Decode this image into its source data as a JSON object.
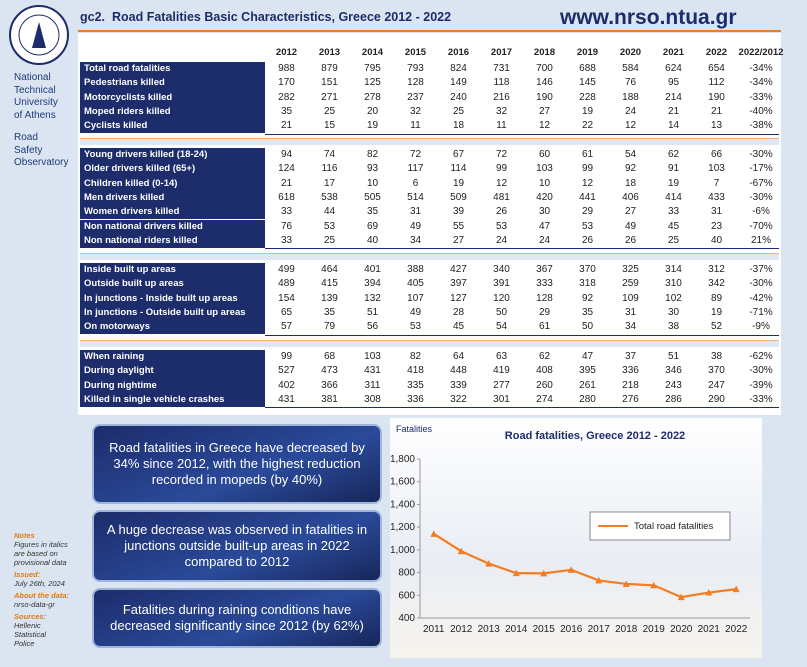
{
  "header": {
    "code": "gc2.",
    "title": "Road Fatalities Basic Characteristics, Greece 2012 - 2022",
    "url": "www.nrso.ntua.gr"
  },
  "sidebar": {
    "institution": [
      "National",
      "Technical",
      "University",
      "of Athens"
    ],
    "unit": [
      "Road",
      "Safety",
      "Observatory"
    ],
    "notes": [
      {
        "head": "Notes",
        "lines": [
          "Figures in italics",
          "are based on",
          "provisional data"
        ]
      },
      {
        "head": "Issued:",
        "lines": [
          "July 26th, 2024"
        ]
      },
      {
        "head": "About the data:",
        "lines": [
          "nrso-data-gr"
        ]
      },
      {
        "head": "Sources:",
        "lines": [
          "Hellenic",
          "Statistical",
          "Police"
        ]
      }
    ]
  },
  "table": {
    "columns": [
      2012,
      2013,
      2014,
      2015,
      2016,
      2017,
      2018,
      2019,
      2020,
      2021,
      2022,
      "2022/2012"
    ],
    "groups": [
      [
        {
          "label": "Total road fatalities",
          "values": [
            988,
            879,
            795,
            793,
            824,
            731,
            700,
            688,
            584,
            624,
            654
          ],
          "change": "-34%"
        },
        {
          "label": "Pedestrians killed",
          "values": [
            170,
            151,
            125,
            128,
            149,
            118,
            146,
            145,
            76,
            95,
            112
          ],
          "change": "-34%"
        },
        {
          "label": "Motorcyclists killed",
          "values": [
            282,
            271,
            278,
            237,
            240,
            216,
            190,
            228,
            188,
            214,
            190
          ],
          "change": "-33%"
        },
        {
          "label": "Moped riders killed",
          "values": [
            35,
            25,
            20,
            32,
            25,
            32,
            27,
            19,
            24,
            21,
            21
          ],
          "change": "-40%"
        },
        {
          "label": "Cyclists killed",
          "values": [
            21,
            15,
            19,
            11,
            18,
            11,
            12,
            22,
            12,
            14,
            13
          ],
          "change": "-38%"
        }
      ],
      [
        {
          "label": "Young drivers killed (18-24)",
          "values": [
            94,
            74,
            82,
            72,
            67,
            72,
            60,
            61,
            54,
            62,
            66
          ],
          "change": "-30%"
        },
        {
          "label": "Older drivers killed (65+)",
          "values": [
            124,
            116,
            93,
            117,
            114,
            99,
            103,
            99,
            92,
            91,
            103
          ],
          "change": "-17%"
        },
        {
          "label": "Children killed (0-14)",
          "values": [
            21,
            17,
            10,
            6,
            19,
            12,
            10,
            12,
            18,
            19,
            7
          ],
          "change": "-67%"
        },
        {
          "label": "Men drivers killed",
          "values": [
            618,
            538,
            505,
            514,
            509,
            481,
            420,
            441,
            406,
            414,
            433
          ],
          "change": "-30%"
        },
        {
          "label": "Women drivers killed",
          "values": [
            33,
            44,
            35,
            31,
            39,
            26,
            30,
            29,
            27,
            33,
            31
          ],
          "change": "-6%"
        },
        {
          "label": "Non national drivers killed",
          "values": [
            76,
            53,
            69,
            49,
            55,
            53,
            47,
            53,
            49,
            45,
            23
          ],
          "change": "-70%"
        },
        {
          "label": "Non national riders killed",
          "values": [
            33,
            25,
            40,
            34,
            27,
            24,
            24,
            26,
            26,
            25,
            40
          ],
          "change": "21%"
        }
      ],
      [
        {
          "label": "Inside built up areas",
          "values": [
            499,
            464,
            401,
            388,
            427,
            340,
            367,
            370,
            325,
            314,
            312
          ],
          "change": "-37%"
        },
        {
          "label": "Outside built up areas",
          "values": [
            489,
            415,
            394,
            405,
            397,
            391,
            333,
            318,
            259,
            310,
            342
          ],
          "change": "-30%"
        },
        {
          "label": "In junctions - Inside built up areas",
          "values": [
            154,
            139,
            132,
            107,
            127,
            120,
            128,
            92,
            109,
            102,
            89
          ],
          "change": "-42%"
        },
        {
          "label": "In junctions - Outside built up areas",
          "values": [
            65,
            35,
            51,
            49,
            28,
            50,
            29,
            35,
            31,
            30,
            19
          ],
          "change": "-71%"
        },
        {
          "label": "On motorways",
          "values": [
            57,
            79,
            56,
            53,
            45,
            54,
            61,
            50,
            34,
            38,
            52
          ],
          "change": "-9%"
        }
      ],
      [
        {
          "label": "When raining",
          "values": [
            99,
            68,
            103,
            82,
            64,
            63,
            62,
            47,
            37,
            51,
            38
          ],
          "change": "-62%"
        },
        {
          "label": "During daylight",
          "values": [
            527,
            473,
            431,
            418,
            448,
            419,
            408,
            395,
            336,
            346,
            370
          ],
          "change": "-30%"
        },
        {
          "label": "During nightime",
          "values": [
            402,
            366,
            311,
            335,
            339,
            277,
            260,
            261,
            218,
            243,
            247
          ],
          "change": "-39%"
        },
        {
          "label": "Killed in single vehicle crashes",
          "values": [
            431,
            381,
            308,
            336,
            322,
            301,
            274,
            280,
            276,
            286,
            290
          ],
          "change": "-33%"
        }
      ]
    ]
  },
  "callouts": [
    "Road fatalities in Greece have decreased by 34% since 2012, with the highest reduction recorded in mopeds (by 40%)",
    "A huge decrease was observed in fatalities in junctions outside built-up areas in 2022 compared to 2012",
    "Fatalities during raining conditions have decreased significantly since 2012 (by 62%)"
  ],
  "chart_data": {
    "type": "line",
    "title": "Road fatalities, Greece 2012 - 2022",
    "y_label": "Fatalities",
    "categories": [
      "2011",
      "2012",
      "2013",
      "2014",
      "2015",
      "2016",
      "2017",
      "2018",
      "2019",
      "2020",
      "2021",
      "2022"
    ],
    "series": [
      {
        "name": "Total road fatalities",
        "color": "#f47c20",
        "values": [
          1141,
          988,
          879,
          795,
          793,
          824,
          731,
          700,
          688,
          584,
          624,
          654
        ]
      }
    ],
    "ylim": [
      400,
      1800
    ],
    "yticks": [
      400,
      {
        "value": 600,
        "label": "600"
      },
      800,
      {
        "value": 1000,
        "label": "1,000"
      },
      {
        "value": 1200,
        "label": "1,200"
      },
      {
        "value": 1400,
        "label": "1,400"
      },
      {
        "value": 1600,
        "label": "1,600"
      },
      {
        "value": 1800,
        "label": "1,800"
      }
    ],
    "grid": false,
    "legend": "right"
  }
}
